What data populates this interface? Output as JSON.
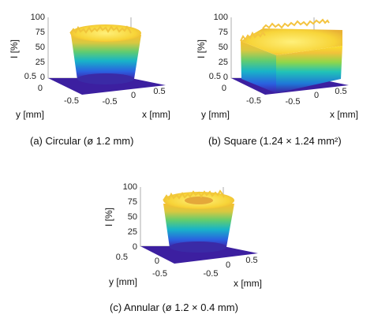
{
  "chart_data": [
    {
      "type": "surface",
      "shape": "circular",
      "caption": "(a) Circular (ø 1.2 mm)",
      "zlabel": "I [%]",
      "xlabel": "x [mm]",
      "ylabel": "y [mm]",
      "z_ticks": [
        "100",
        "75",
        "50",
        "25",
        "0"
      ],
      "x_ticks": [
        "-0.5",
        "0",
        "0.5"
      ],
      "y_ticks": [
        "0.5",
        "0",
        "-0.5"
      ],
      "zlim": [
        0,
        100
      ],
      "size_mm": 1.2,
      "plateau_percent": 92,
      "colormap": [
        "#3c1fa0",
        "#1f78d8",
        "#20c3b8",
        "#8fd64a",
        "#f2c23a",
        "#fbe02a"
      ]
    },
    {
      "type": "surface",
      "shape": "square",
      "caption": "(b) Square (1.24 × 1.24 mm²)",
      "zlabel": "I [%]",
      "xlabel": "x [mm]",
      "ylabel": "y [mm]",
      "z_ticks": [
        "100",
        "75",
        "50",
        "25",
        "0"
      ],
      "x_ticks": [
        "-0.5",
        "0",
        "0.5"
      ],
      "y_ticks": [
        "0.5",
        "0",
        "-0.5"
      ],
      "zlim": [
        0,
        100
      ],
      "size_mm": 1.24,
      "plateau_percent": 90,
      "colormap": [
        "#3c1fa0",
        "#1f78d8",
        "#20c3b8",
        "#8fd64a",
        "#f2c23a",
        "#fbe02a"
      ]
    },
    {
      "type": "surface",
      "shape": "annular",
      "caption": "(c) Annular (ø 1.2 × 0.4 mm)",
      "zlabel": "I [%]",
      "xlabel": "x [mm]",
      "ylabel": "y [mm]",
      "z_ticks": [
        "100",
        "75",
        "50",
        "25",
        "0"
      ],
      "x_ticks": [
        "-0.5",
        "0",
        "0.5"
      ],
      "y_ticks": [
        "0.5",
        "0",
        "-0.5"
      ],
      "zlim": [
        0,
        100
      ],
      "outer_diameter_mm": 1.2,
      "inner_diameter_mm": 0.4,
      "plateau_percent": 92,
      "colormap": [
        "#3c1fa0",
        "#1f78d8",
        "#20c3b8",
        "#8fd64a",
        "#f2c23a",
        "#fbe02a"
      ]
    }
  ]
}
